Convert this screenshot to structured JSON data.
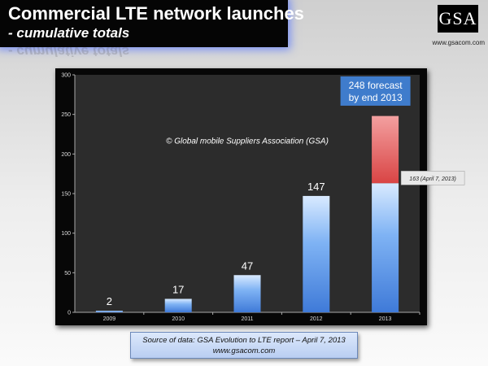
{
  "header": {
    "title": "Commercial LTE network launches",
    "subtitle": "- cumulative totals",
    "logo_text": "GSA",
    "website": "www.gsacom.com"
  },
  "source": {
    "line1": "Source of data: GSA Evolution to LTE report – April 7, 2013",
    "line2": "www.gsacom.com"
  },
  "colors": {
    "bar": "#5b9ae6",
    "forecast": "#e24a4a",
    "callout": "#3f7ccc"
  },
  "chart_data": {
    "type": "bar",
    "categories": [
      "2009",
      "2010",
      "2011",
      "2012",
      "2013"
    ],
    "values": [
      2,
      17,
      47,
      147,
      163
    ],
    "data_labels": [
      "2",
      "17",
      "47",
      "147",
      ""
    ],
    "forecast": {
      "category": "2013",
      "value": 248,
      "label_line1": "248 forecast",
      "label_line2": "by end 2013"
    },
    "annotations": [
      "© Global mobile Suppliers Association (GSA)",
      "163 (April 7, 2013)"
    ],
    "ylim": [
      0,
      300
    ],
    "yticks": [
      0,
      50,
      100,
      150,
      200,
      250,
      300
    ],
    "grid": false,
    "legend": "none"
  }
}
